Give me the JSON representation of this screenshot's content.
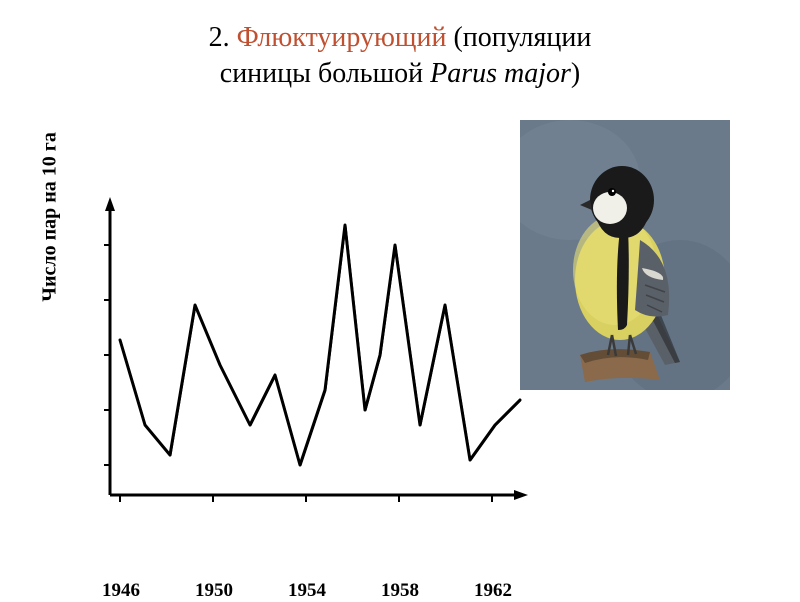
{
  "title": {
    "number": "2.",
    "emphasis": "Флюктуирующий",
    "rest1": "(популяции",
    "line2_a": "синицы большой",
    "line2_italic": "Parus major",
    "line2_end": ")"
  },
  "chart": {
    "type": "line",
    "y_label": "Число пар на 10 га",
    "x_ticks": [
      "1946",
      "1950",
      "1954",
      "1958",
      "1962"
    ],
    "x_tick_positions": [
      0,
      93,
      186,
      279,
      372
    ],
    "line_color": "#000000",
    "line_width": 3,
    "axis_color": "#000000",
    "axis_width": 3,
    "background_color": "#ffffff",
    "label_fontsize": 20,
    "tick_fontsize": 19,
    "data_points": [
      {
        "x": 0,
        "y": 165
      },
      {
        "x": 25,
        "y": 250
      },
      {
        "x": 50,
        "y": 280
      },
      {
        "x": 75,
        "y": 130
      },
      {
        "x": 100,
        "y": 190
      },
      {
        "x": 130,
        "y": 250
      },
      {
        "x": 155,
        "y": 200
      },
      {
        "x": 180,
        "y": 290
      },
      {
        "x": 205,
        "y": 215
      },
      {
        "x": 225,
        "y": 50
      },
      {
        "x": 245,
        "y": 235
      },
      {
        "x": 260,
        "y": 180
      },
      {
        "x": 275,
        "y": 70
      },
      {
        "x": 300,
        "y": 250
      },
      {
        "x": 325,
        "y": 130
      },
      {
        "x": 350,
        "y": 285
      },
      {
        "x": 375,
        "y": 250
      },
      {
        "x": 400,
        "y": 225
      }
    ],
    "y_axis_top": 30,
    "y_axis_bottom": 320,
    "x_axis_left": 0,
    "x_axis_right": 420,
    "arrow_size": 10
  },
  "bird": {
    "name": "great-tit",
    "colors": {
      "background": "#6a7a8a",
      "body_yellow": "#d8d060",
      "head_black": "#1a1a1a",
      "cheek_white": "#f0f0e8",
      "wing_grey": "#5a6068",
      "wing_bar": "#d8d8d0",
      "belly_stripe": "#1a1a1a",
      "perch_brown": "#8a6a4a",
      "perch_dark": "#4a3a2a",
      "eye": "#000000"
    }
  }
}
